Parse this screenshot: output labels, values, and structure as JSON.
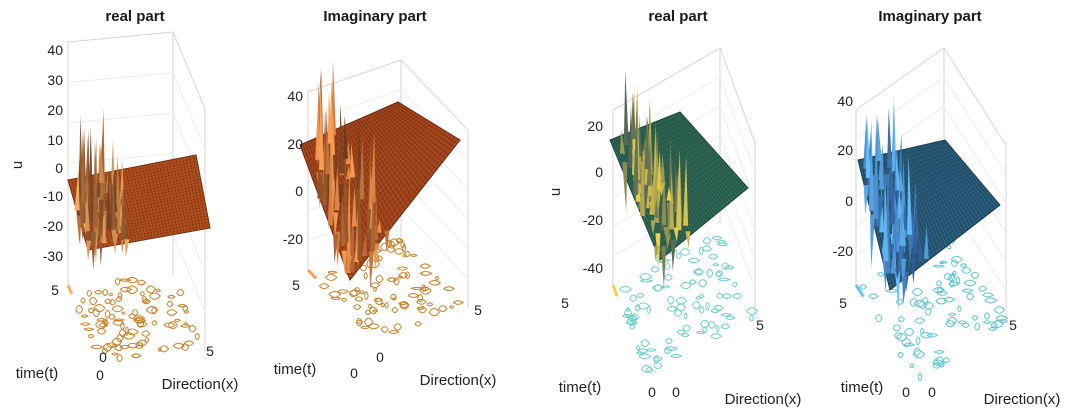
{
  "chart_data": [
    {
      "type": "surface",
      "title": "real part",
      "colormap": "copper",
      "xlabel": "Direction(x)",
      "ylabel": "time(t)",
      "zlabel": "u",
      "x_ticks": [
        "0",
        "5"
      ],
      "y_ticks": [
        "0",
        "5"
      ],
      "z_ticks": [
        "40",
        "30",
        "20",
        "10",
        "0",
        "-10",
        "-20",
        "-30"
      ],
      "xlim": [
        0,
        5
      ],
      "ylim": [
        0,
        5
      ],
      "zlim": [
        -35,
        42
      ],
      "colors": {
        "surface": "#b5501e",
        "high": "#ffb066",
        "low": "#3a1505",
        "contour": "#c8822c"
      }
    },
    {
      "type": "surface",
      "title": "Imaginary part",
      "colormap": "copper",
      "xlabel": "Direction(x)",
      "ylabel": "time(t)",
      "zlabel": "",
      "x_ticks": [
        "0",
        "5"
      ],
      "y_ticks": [
        "0",
        "5"
      ],
      "z_ticks": [
        "40",
        "20",
        "0",
        "-20"
      ],
      "xlim": [
        0,
        5
      ],
      "ylim": [
        0,
        5
      ],
      "zlim": [
        -28,
        45
      ],
      "colors": {
        "surface": "#a8461c",
        "high": "#ff9e55",
        "low": "#3a1505",
        "contour": "#c8822c"
      }
    },
    {
      "type": "surface",
      "title": "real part",
      "colormap": "summer",
      "xlabel": "Direction(x)",
      "ylabel": "time(t)",
      "zlabel": "u",
      "x_ticks": [
        "0",
        "5"
      ],
      "y_ticks": [
        "0",
        "5"
      ],
      "z_ticks": [
        "20",
        "0",
        "-20",
        "-40"
      ],
      "xlim": [
        0,
        5
      ],
      "ylim": [
        0,
        5
      ],
      "zlim": [
        -48,
        30
      ],
      "colors": {
        "surface": "#2f6b58",
        "high": "#f2d34a",
        "low": "#1c3f5a",
        "contour": "#6fd0c6"
      }
    },
    {
      "type": "surface",
      "title": "Imaginary part",
      "colormap": "winter",
      "xlabel": "Direction(x)",
      "ylabel": "time(t)",
      "zlabel": "",
      "x_ticks": [
        "0",
        "5"
      ],
      "y_ticks": [
        "0",
        "5"
      ],
      "z_ticks": [
        "40",
        "20",
        "0",
        "-20"
      ],
      "xlim": [
        0,
        5
      ],
      "ylim": [
        0,
        5
      ],
      "zlim": [
        -30,
        45
      ],
      "colors": {
        "surface": "#2a5f7d",
        "high": "#65c3ff",
        "low": "#1b2f6e",
        "contour": "#5fc7cf"
      }
    }
  ]
}
